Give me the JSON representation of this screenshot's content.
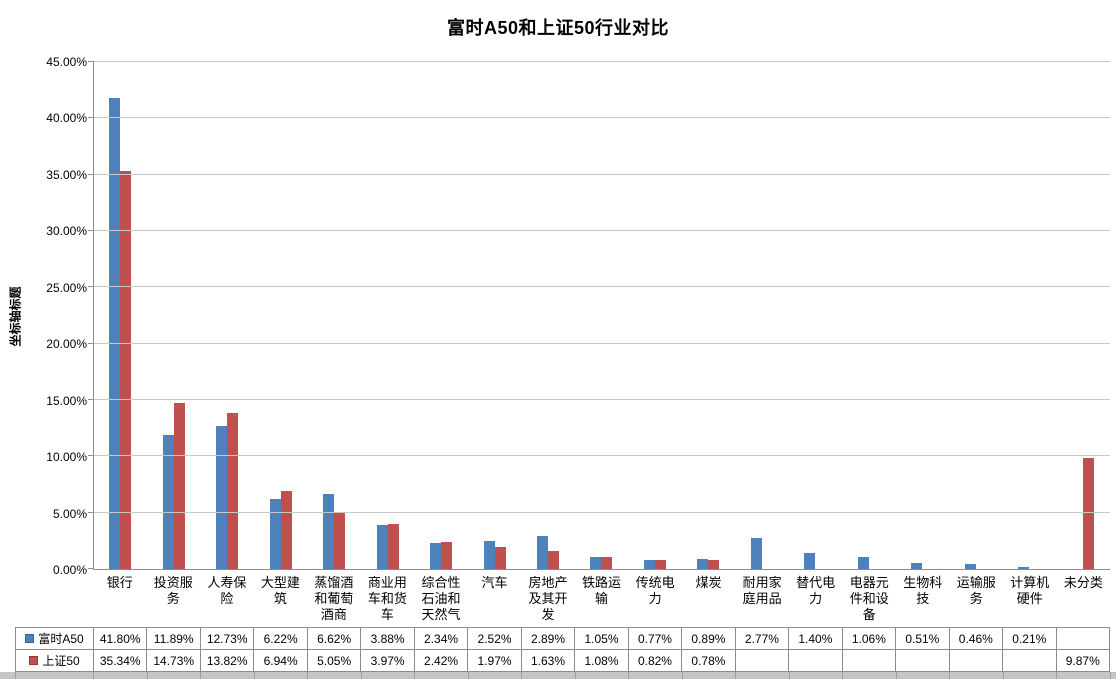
{
  "chart_data": {
    "type": "bar",
    "title": "富时A50和上证50行业对比",
    "y_axis_title": "坐标轴标题",
    "ylim": [
      0,
      45
    ],
    "y_tick_step": 5,
    "y_tick_suffix": "%",
    "grid": true,
    "legend_position": "left-of-data-table",
    "categories": [
      "银行",
      "投资服务",
      "人寿保险",
      "大型建筑",
      "蒸馏酒和葡萄酒商",
      "商业用车和货车",
      "综合性石油和天然气",
      "汽车",
      "房地产及其开发",
      "铁路运输",
      "传统电力",
      "煤炭",
      "耐用家庭用品",
      "替代电力",
      "电器元件和设备",
      "生物科技",
      "运输服务",
      "计算机硬件",
      "未分类"
    ],
    "series": [
      {
        "name": "富时A50",
        "color": "#4F81BD",
        "swatch_border": "#3a6090",
        "values": [
          41.8,
          11.89,
          12.73,
          6.22,
          6.62,
          3.88,
          2.34,
          2.52,
          2.89,
          1.05,
          0.77,
          0.89,
          2.77,
          1.4,
          1.06,
          0.51,
          0.46,
          0.21,
          null
        ],
        "labels": [
          "41.80%",
          "11.89%",
          "12.73%",
          "6.22%",
          "6.62%",
          "3.88%",
          "2.34%",
          "2.52%",
          "2.89%",
          "1.05%",
          "0.77%",
          "0.89%",
          "2.77%",
          "1.40%",
          "1.06%",
          "0.51%",
          "0.46%",
          "0.21%",
          ""
        ]
      },
      {
        "name": "上证50",
        "color": "#C0504D",
        "swatch_border": "#8e3a38",
        "values": [
          35.34,
          14.73,
          13.82,
          6.94,
          5.05,
          3.97,
          2.42,
          1.97,
          1.63,
          1.08,
          0.82,
          0.78,
          null,
          null,
          null,
          null,
          null,
          null,
          9.87
        ],
        "labels": [
          "35.34%",
          "14.73%",
          "13.82%",
          "6.94%",
          "5.05%",
          "3.97%",
          "2.42%",
          "1.97%",
          "1.63%",
          "1.08%",
          "0.82%",
          "0.78%",
          "",
          "",
          "",
          "",
          "",
          "",
          "9.87%"
        ]
      }
    ]
  }
}
